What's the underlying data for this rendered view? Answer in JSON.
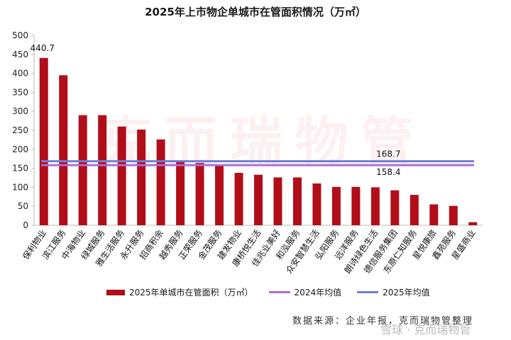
{
  "title": "2025年上市物企单城市在管面积情况（万㎡）",
  "watermark": "克而瑞物管",
  "source": "数据来源：企业年报，克而瑞物管整理",
  "logo": "雪球 · 克而瑞物管",
  "colors": {
    "bar": "#b10e1a",
    "avg2024": "#b06bd6",
    "avg2025": "#6e7fd6"
  },
  "chart_data": {
    "type": "bar",
    "title": "2025年上市物企单城市在管面积情况（万㎡）",
    "categories": [
      "保利物业",
      "滨江服务",
      "中海物业",
      "绿城服务",
      "雅生活服务",
      "永升服务",
      "招商积余",
      "越秀服务",
      "正荣服务",
      "金茂服务",
      "建发物业",
      "康桥悦生活",
      "佳兆业美好",
      "和泓服务",
      "众安智慧生活",
      "弘阳服务",
      "远洋服务",
      "朗诗绿色生活",
      "德信服务集团",
      "东原仁知服务",
      "星悦康旅",
      "鑫苑服务",
      "星盛商业"
    ],
    "series": [
      {
        "name": "2025年单城市在管面积（万㎡）",
        "values": [
          440.7,
          395,
          290,
          290,
          260,
          252,
          226,
          167,
          164,
          156,
          138,
          133,
          126,
          126,
          110,
          101,
          101,
          100,
          92,
          80,
          55,
          51,
          8
        ]
      }
    ],
    "reference_lines": [
      {
        "name": "2024年均值",
        "value": 158.4,
        "color": "#b06bd6"
      },
      {
        "name": "2025年均值",
        "value": 168.7,
        "color": "#6e7fd6"
      }
    ],
    "data_labels": [
      {
        "category": "保利物业",
        "text": "440.7"
      },
      {
        "line": "2025年均值",
        "text": "168.7"
      },
      {
        "line": "2024年均值",
        "text": "158.4"
      }
    ],
    "ylim": [
      0,
      500
    ],
    "yticks": [
      0,
      50,
      100,
      150,
      200,
      250,
      300,
      350,
      400,
      450,
      500
    ],
    "grid": false,
    "legend_position": "bottom"
  }
}
